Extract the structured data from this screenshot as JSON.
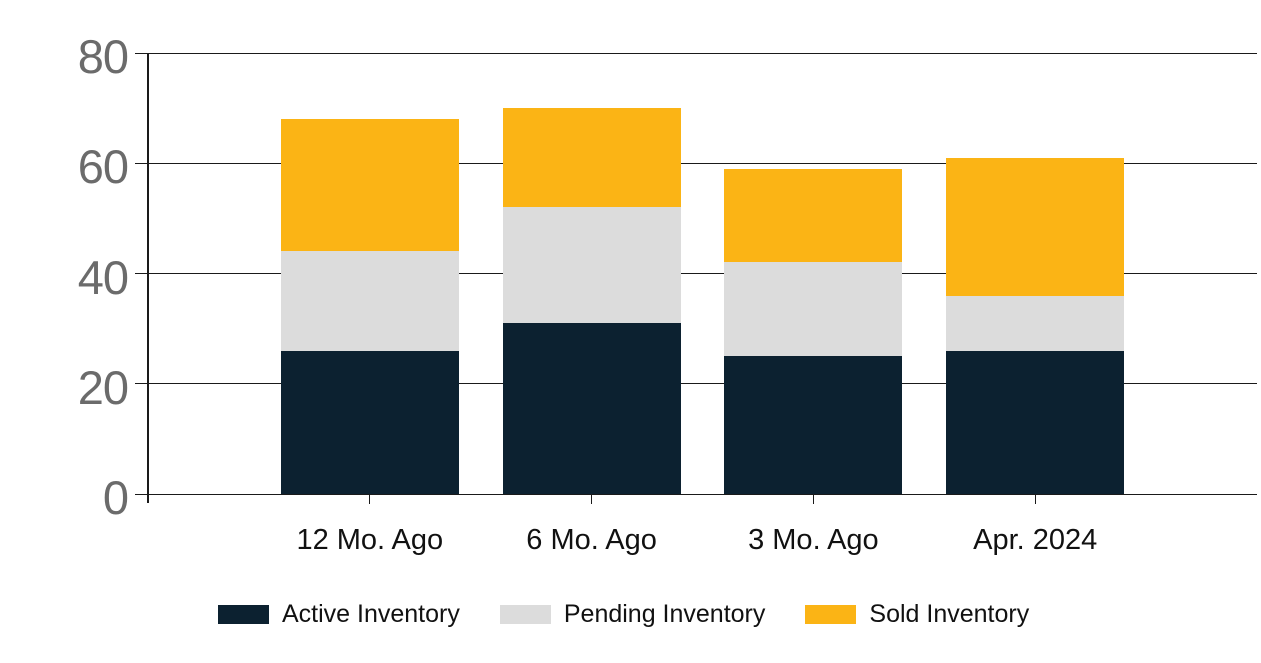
{
  "chart_data": {
    "type": "bar",
    "stacked": true,
    "title": "",
    "xlabel": "",
    "ylabel": "",
    "categories": [
      "12 Mo. Ago",
      "6 Mo. Ago",
      "3 Mo. Ago",
      "Apr. 2024"
    ],
    "series": [
      {
        "name": "Active Inventory",
        "color": "#0c2130",
        "values": [
          26,
          31,
          25,
          26
        ]
      },
      {
        "name": "Pending Inventory",
        "color": "#dcdcdc",
        "values": [
          18,
          21,
          17,
          10
        ]
      },
      {
        "name": "Sold Inventory",
        "color": "#fbb415",
        "values": [
          24,
          18,
          17,
          25
        ]
      }
    ],
    "stack_totals": [
      68,
      70,
      59,
      61
    ],
    "y_axis": {
      "min": 0,
      "max": 80,
      "tick_interval": 20,
      "ticks": [
        0,
        20,
        40,
        60,
        80
      ],
      "tick_labels": [
        "0",
        "20",
        "40",
        "60",
        "80"
      ]
    },
    "grid": true,
    "legend_position": "bottom"
  },
  "colors": {
    "background": "#ffffff",
    "gridline": "#1a1a1a",
    "axis_label": "#6b6b6b",
    "text": "#111111",
    "active_inventory": "#0c2130",
    "pending_inventory": "#dcdcdc",
    "sold_inventory": "#fbb415"
  }
}
